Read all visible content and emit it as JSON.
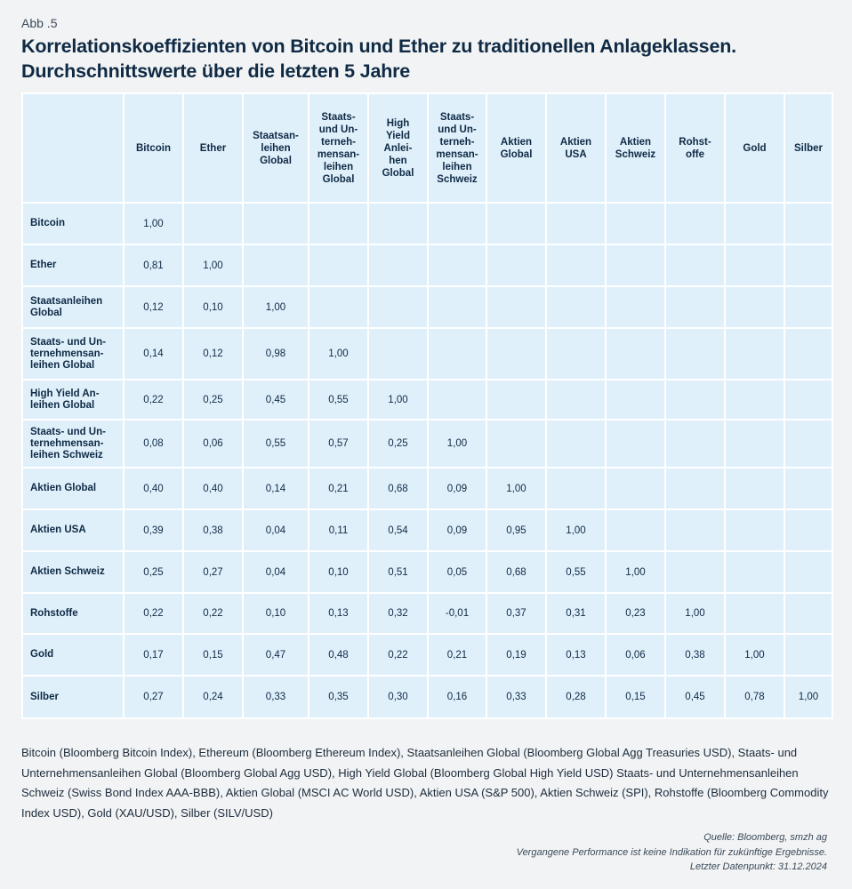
{
  "figure_label": "Abb .5",
  "title": "Korrelationskoeffizienten von Bitcoin und Ether zu traditionellen Anlageklassen. Durchschnittswerte über die letzten 5 Jahre",
  "chart_data": {
    "type": "table",
    "columns": [
      "Bitcoin",
      "Ether",
      "Staatsan-\nleihen\nGlobal",
      "Staats-\nund Un-\nterneh-\nmensan-\nleihen\nGlobal",
      "High\nYield\nAnlei-\nhen\nGlobal",
      "Staats-\nund Un-\nterneh-\nmensan-\nleihen\nSchweiz",
      "Aktien\nGlobal",
      "Aktien\nUSA",
      "Aktien\nSchweiz",
      "Rohst-\noffe",
      "Gold",
      "Silber"
    ],
    "rows": [
      {
        "label": "Bitcoin",
        "values": [
          "1,00"
        ]
      },
      {
        "label": "Ether",
        "values": [
          "0,81",
          "1,00"
        ]
      },
      {
        "label": "Staatsanleihen\nGlobal",
        "values": [
          "0,12",
          "0,10",
          "1,00"
        ]
      },
      {
        "label": "Staats- und Un-\nternehmensan-\nleihen Global",
        "values": [
          "0,14",
          "0,12",
          "0,98",
          "1,00"
        ]
      },
      {
        "label": "High Yield An-\nleihen Global",
        "values": [
          "0,22",
          "0,25",
          "0,45",
          "0,55",
          "1,00"
        ]
      },
      {
        "label": "Staats- und Un-\nternehmensan-\nleihen Schweiz",
        "values": [
          "0,08",
          "0,06",
          "0,55",
          "0,57",
          "0,25",
          "1,00"
        ]
      },
      {
        "label": "Aktien Global",
        "values": [
          "0,40",
          "0,40",
          "0,14",
          "0,21",
          "0,68",
          "0,09",
          "1,00"
        ]
      },
      {
        "label": "Aktien USA",
        "values": [
          "0,39",
          "0,38",
          "0,04",
          "0,11",
          "0,54",
          "0,09",
          "0,95",
          "1,00"
        ]
      },
      {
        "label": "Aktien Schweiz",
        "values": [
          "0,25",
          "0,27",
          "0,04",
          "0,10",
          "0,51",
          "0,05",
          "0,68",
          "0,55",
          "1,00"
        ]
      },
      {
        "label": "Rohstoffe",
        "values": [
          "0,22",
          "0,22",
          "0,10",
          "0,13",
          "0,32",
          "-0,01",
          "0,37",
          "0,31",
          "0,23",
          "1,00"
        ]
      },
      {
        "label": "Gold",
        "values": [
          "0,17",
          "0,15",
          "0,47",
          "0,48",
          "0,22",
          "0,21",
          "0,19",
          "0,13",
          "0,06",
          "0,38",
          "1,00"
        ]
      },
      {
        "label": "Silber",
        "values": [
          "0,27",
          "0,24",
          "0,33",
          "0,35",
          "0,30",
          "0,16",
          "0,33",
          "0,28",
          "0,15",
          "0,45",
          "0,78",
          "1,00"
        ]
      }
    ],
    "cell_color": "#dff0fb"
  },
  "footnote": "Bitcoin (Bloomberg Bitcoin Index), Ethereum (Bloomberg Ethereum Index), Staatsanleihen Global (Bloomberg Global Agg Treasuries USD), Staats- und Unternehmensanleihen Global (Bloomberg Global Agg USD), High Yield Global (Bloomberg Global High Yield USD) Staats- und Unternehmensanleihen Schweiz (Swiss Bond Index AAA-BBB), Aktien Global (MSCI AC World USD), Aktien USA (S&P 500), Aktien Schweiz (SPI), Rohstoffe (Bloomberg Commodity Index USD), Gold (XAU/USD), Silber (SILV/USD)",
  "source": [
    "Quelle: Bloomberg, smzh ag",
    "Vergangene Performance ist keine Indikation für zukünftige Ergebnisse.",
    "Letzter Datenpunkt: 31.12.2024"
  ]
}
